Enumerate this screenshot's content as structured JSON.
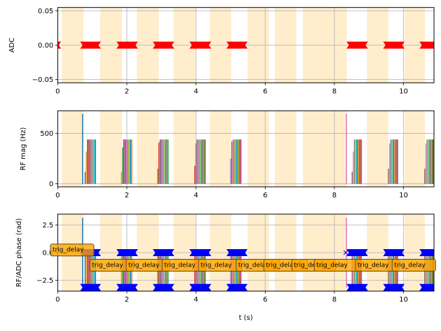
{
  "chart_data": [
    {
      "type": "scatter",
      "ylabel": "ADC",
      "xlim": [
        0,
        10.88
      ],
      "ylim": [
        -0.055,
        0.055
      ],
      "yticks": [
        "0.05",
        "0.00",
        "−0.05"
      ],
      "ytick_values": [
        0.05,
        0,
        -0.05
      ],
      "xticks": [
        "0",
        "2",
        "4",
        "6",
        "8",
        "10"
      ],
      "xtick_values": [
        0,
        2,
        4,
        6,
        8,
        10
      ],
      "grid": true,
      "adc_segments": [
        [
          0,
          0
        ],
        [
          0.75,
          1.15
        ],
        [
          1.8,
          2.22
        ],
        [
          2.85,
          3.27
        ],
        [
          3.91,
          4.34
        ],
        [
          4.98,
          5.39
        ],
        [
          8.45,
          8.87
        ],
        [
          9.51,
          9.93
        ],
        [
          10.56,
          10.98
        ]
      ],
      "marker_color": "#ff0000"
    },
    {
      "type": "bar",
      "ylabel": "RF mag (Hz)",
      "xlim": [
        0,
        10.88
      ],
      "ylim": [
        -30,
        725
      ],
      "yticks": [
        "0",
        "500"
      ],
      "ytick_values": [
        0,
        500
      ],
      "xticks": [
        "0",
        "2",
        "4",
        "6",
        "8",
        "10"
      ],
      "xtick_values": [
        0,
        2,
        4,
        6,
        8,
        10
      ],
      "grid": true,
      "spikes": [
        {
          "t": 0.72,
          "mag": 694,
          "color": "#1f77b4"
        },
        {
          "t": 8.35,
          "mag": 694,
          "color": "#e377c2"
        }
      ],
      "pulse_clusters": [
        {
          "start": 0.78,
          "end": 1.09,
          "mag": 440,
          "ramp": [
            120,
            320
          ]
        },
        {
          "start": 1.83,
          "end": 2.14,
          "mag": 440,
          "ramp": [
            120,
            360
          ]
        },
        {
          "start": 2.88,
          "end": 3.19,
          "mag": 440,
          "ramp": [
            150,
            410
          ]
        },
        {
          "start": 3.95,
          "end": 4.26,
          "mag": 440,
          "ramp": [
            180,
            400
          ]
        },
        {
          "start": 4.99,
          "end": 5.3,
          "mag": 440,
          "ramp": [
            250,
            420
          ]
        },
        {
          "start": 8.5,
          "end": 8.8,
          "mag": 440,
          "ramp": [
            120,
            320
          ]
        },
        {
          "start": 9.55,
          "end": 9.85,
          "mag": 440,
          "ramp": [
            150,
            400
          ]
        },
        {
          "start": 10.6,
          "end": 10.88,
          "mag": 440,
          "ramp": [
            150,
            400
          ]
        }
      ]
    },
    {
      "type": "bar",
      "ylabel": "RF/ADC phase (rad)",
      "xlabel": "t (s)",
      "xlim": [
        0,
        10.88
      ],
      "ylim": [
        -3.47,
        3.47
      ],
      "yticks": [
        "2.5",
        "0.0",
        "−2.5"
      ],
      "ytick_values": [
        2.5,
        0,
        -2.5
      ],
      "xticks": [
        "0",
        "2",
        "4",
        "6",
        "8",
        "10"
      ],
      "xtick_values": [
        0,
        2,
        4,
        6,
        8,
        10
      ],
      "grid": true,
      "adc_phase_levels": [
        0,
        -3.1416
      ],
      "marker_color": "#0000ff",
      "lone_marker": {
        "t": 8.33,
        "phase": 0
      },
      "annotations": [
        {
          "text": "trig_delay",
          "x": -0.21,
          "y": 0.3
        },
        {
          "text": "trig_delay",
          "x": 0.93,
          "y": -1.07
        },
        {
          "text": "trig_delay",
          "x": 1.98,
          "y": -1.07
        },
        {
          "text": "trig_delay",
          "x": 3.02,
          "y": -1.07
        },
        {
          "text": "trig_delay",
          "x": 4.07,
          "y": -1.07
        },
        {
          "text": "trig_delay",
          "x": 5.16,
          "y": -1.07
        },
        {
          "text": "trig_delay",
          "x": 5.96,
          "y": -1.07
        },
        {
          "text": "trig_delay",
          "x": 6.77,
          "y": -1.07
        },
        {
          "text": "trig_delay",
          "x": 7.42,
          "y": -1.07
        },
        {
          "text": "trig_delay",
          "x": 8.61,
          "y": -1.07
        },
        {
          "text": "trig_delay",
          "x": 9.67,
          "y": -1.07
        }
      ]
    }
  ],
  "shaded_regions": [
    [
      0.12,
      0.745
    ],
    [
      1.23,
      1.86
    ],
    [
      2.29,
      2.92
    ],
    [
      3.35,
      3.98
    ],
    [
      4.4,
      5.02
    ],
    [
      5.49,
      6.11
    ],
    [
      6.28,
      6.9
    ],
    [
      7.09,
      7.73
    ],
    [
      7.73,
      8.36
    ],
    [
      8.94,
      9.56
    ],
    [
      10.03,
      10.62
    ]
  ],
  "colors": {
    "shade": "#ffa500",
    "grid": "#b0b0b0",
    "annotation_box": "#ffa500",
    "cycle": [
      "#1f77b4",
      "#ff7f0e",
      "#2ca02c",
      "#d62728",
      "#9467bd",
      "#8c564b",
      "#e377c2",
      "#7f7f7f",
      "#bcbd22",
      "#17becf"
    ]
  }
}
